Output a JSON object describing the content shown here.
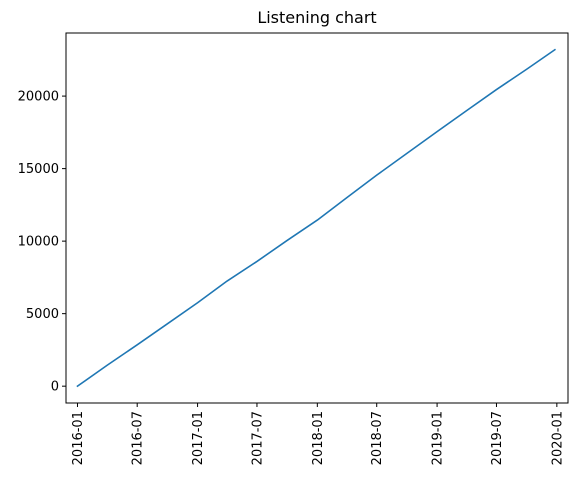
{
  "chart_data": {
    "type": "line",
    "title": "Listening chart",
    "xlabel": "",
    "ylabel": "",
    "x_type": "date",
    "xlim": [
      "2015-11-27",
      "2020-02-04"
    ],
    "ylim": [
      -1160,
      24350
    ],
    "x_ticks": [
      {
        "date": "2016-01-01",
        "label": "2016-01"
      },
      {
        "date": "2016-07-01",
        "label": "2016-07"
      },
      {
        "date": "2017-01-01",
        "label": "2017-01"
      },
      {
        "date": "2017-07-01",
        "label": "2017-07"
      },
      {
        "date": "2018-01-01",
        "label": "2018-01"
      },
      {
        "date": "2018-07-01",
        "label": "2018-07"
      },
      {
        "date": "2019-01-01",
        "label": "2019-01"
      },
      {
        "date": "2019-07-01",
        "label": "2019-07"
      },
      {
        "date": "2020-01-01",
        "label": "2020-01"
      }
    ],
    "y_ticks": [
      {
        "value": 0,
        "label": "0"
      },
      {
        "value": 5000,
        "label": "5000"
      },
      {
        "value": 10000,
        "label": "10000"
      },
      {
        "value": 15000,
        "label": "15000"
      },
      {
        "value": 20000,
        "label": "20000"
      }
    ],
    "grid": false,
    "legend": "none",
    "series": [
      {
        "color": "#1f77b4",
        "points": [
          {
            "x": "2016-01-01",
            "y": 0
          },
          {
            "x": "2016-04-01",
            "y": 1450
          },
          {
            "x": "2016-07-01",
            "y": 2850
          },
          {
            "x": "2016-10-01",
            "y": 4300
          },
          {
            "x": "2017-01-01",
            "y": 5750
          },
          {
            "x": "2017-04-01",
            "y": 7250
          },
          {
            "x": "2017-07-01",
            "y": 8600
          },
          {
            "x": "2017-10-01",
            "y": 10050
          },
          {
            "x": "2018-01-01",
            "y": 11450
          },
          {
            "x": "2018-04-01",
            "y": 13000
          },
          {
            "x": "2018-07-01",
            "y": 14550
          },
          {
            "x": "2018-10-01",
            "y": 16050
          },
          {
            "x": "2019-01-01",
            "y": 17550
          },
          {
            "x": "2019-04-01",
            "y": 19000
          },
          {
            "x": "2019-07-01",
            "y": 20450
          },
          {
            "x": "2019-10-01",
            "y": 21850
          },
          {
            "x": "2019-12-26",
            "y": 23200
          }
        ]
      }
    ]
  }
}
